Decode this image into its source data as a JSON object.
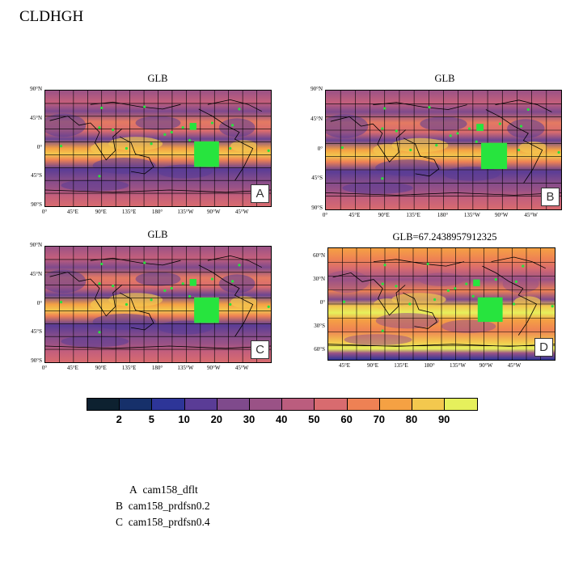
{
  "title": "CLDHGH",
  "panels": [
    {
      "title": "GLB",
      "letter": "A",
      "lat_labels": [
        "90°N",
        "45°N",
        "0°",
        "45°S",
        "90°S"
      ],
      "lon_labels": [
        "0°",
        "45°E",
        "90°E",
        "135°E",
        "180°",
        "135°W",
        "90°W",
        "45°W"
      ]
    },
    {
      "title": "GLB",
      "letter": "B",
      "lat_labels": [
        "90°N",
        "45°N",
        "0°",
        "45°S",
        "90°S"
      ],
      "lon_labels": [
        "0°",
        "45°E",
        "90°E",
        "135°E",
        "180°",
        "135°W",
        "90°W",
        "45°W"
      ]
    },
    {
      "title": "GLB",
      "letter": "C",
      "lat_labels": [
        "90°N",
        "45°N",
        "0°",
        "45°S",
        "90°S"
      ],
      "lon_labels": [
        "0°",
        "45°E",
        "90°E",
        "135°E",
        "180°",
        "135°W",
        "90°W",
        "45°W"
      ]
    },
    {
      "title": "GLB=67.2438957912325",
      "letter": "D",
      "lat_labels": [
        "60°N",
        "30°N",
        "0°",
        "30°S",
        "60°S"
      ],
      "lon_labels": [
        "45°E",
        "90°E",
        "135°E",
        "180°",
        "135°W",
        "90°W",
        "45°W"
      ]
    }
  ],
  "colorbar": {
    "colors": [
      "#0d2130",
      "#16306a",
      "#2d3598",
      "#5a3c96",
      "#7f4a8c",
      "#9a5286",
      "#bb5d7e",
      "#d86b6f",
      "#ee8154",
      "#f5a143",
      "#f3c84e",
      "#e6f05c"
    ],
    "labels": [
      "2",
      "5",
      "10",
      "20",
      "30",
      "40",
      "50",
      "60",
      "70",
      "80",
      "90"
    ]
  },
  "legend": [
    {
      "key": "A",
      "name": "cam158_dflt"
    },
    {
      "key": "B",
      "name": "cam158_prdfsn0.2"
    },
    {
      "key": "C",
      "name": "cam158_prdfsn0.4"
    }
  ]
}
